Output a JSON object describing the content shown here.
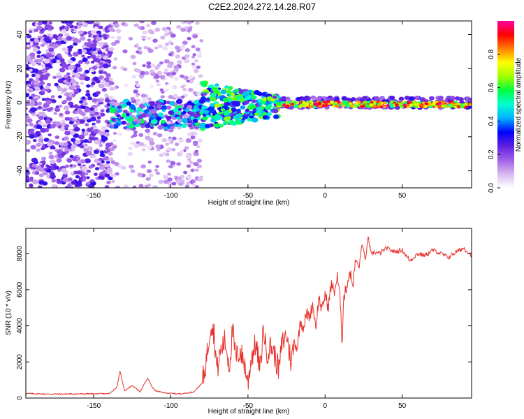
{
  "title": "C2E2.2024.272.14.28.R07",
  "chart_data": [
    {
      "type": "heatmap",
      "xlabel": "Height of straight line (km)",
      "ylabel": "Frequency (Hz)",
      "xlim": [
        -194,
        95
      ],
      "ylim": [
        -50,
        48
      ],
      "xticks": [
        -150,
        -100,
        -50,
        0,
        50
      ],
      "yticks": [
        -40,
        -20,
        0,
        20,
        40
      ],
      "xtick_labels": [
        "-150",
        "-100",
        "-50",
        "0",
        "50"
      ],
      "ytick_labels": [
        "-40",
        "-20",
        "0",
        "20",
        "40"
      ],
      "colorbar": {
        "label": "Normalized spectral amplitude",
        "range": [
          0,
          1
        ],
        "ticks": [
          0.0,
          0.2,
          0.4,
          0.6,
          0.8
        ],
        "tick_labels": [
          "0.0",
          "0.2",
          "0.4",
          "0.6",
          "0.8"
        ],
        "colormap": [
          "#ffffff",
          "#d8b8f0",
          "#a060e8",
          "#6020e0",
          "#0000ff",
          "#00b0ff",
          "#00ffd0",
          "#00ff40",
          "#a0ff00",
          "#ffff00",
          "#ff8000",
          "#ff0000",
          "#ff00a0"
        ]
      },
      "regions": [
        {
          "x_range": [
            -194,
            -139
          ],
          "pattern": "broadband scattered noise",
          "amplitude": [
            0.05,
            0.3
          ]
        },
        {
          "x_range": [
            -139,
            -80
          ],
          "pattern": "noise with concentrated band near 0 Hz",
          "amplitude": [
            0.1,
            0.6
          ]
        },
        {
          "x_range": [
            -80,
            -30
          ],
          "pattern": "narrowing band around 0 Hz",
          "amplitude": [
            0.2,
            0.7
          ]
        },
        {
          "x_range": [
            -30,
            95
          ],
          "pattern": "narrow band at 0 Hz",
          "amplitude": [
            0.5,
            1.0
          ]
        }
      ]
    },
    {
      "type": "line",
      "xlabel": "Height of straight line (km)",
      "ylabel": "SNR (10 * v/v)",
      "xlim": [
        -194,
        95
      ],
      "ylim": [
        0,
        9400
      ],
      "xticks": [
        -150,
        -100,
        -50,
        0,
        50
      ],
      "yticks": [
        0,
        2000,
        4000,
        6000,
        8000
      ],
      "xtick_labels": [
        "-150",
        "-100",
        "-50",
        "0",
        "50"
      ],
      "ytick_labels": [
        "0",
        "2000",
        "4000",
        "6000",
        "8000"
      ],
      "color": "#e8302a",
      "series": [
        {
          "name": "SNR",
          "x": [
            -194,
            -180,
            -160,
            -140,
            -135,
            -133,
            -130,
            -125,
            -120,
            -115,
            -112,
            -110,
            -105,
            -100,
            -95,
            -90,
            -85,
            -80,
            -78,
            -76,
            -74,
            -72,
            -70,
            -68,
            -65,
            -62,
            -60,
            -58,
            -55,
            -52,
            -50,
            -48,
            -45,
            -42,
            -40,
            -38,
            -35,
            -32,
            -30,
            -28,
            -25,
            -22,
            -20,
            -18,
            -16,
            -14,
            -12,
            -10,
            -8,
            -6,
            -4,
            -2,
            0,
            2,
            4,
            6,
            8,
            10,
            11,
            12,
            14,
            16,
            18,
            20,
            22,
            24,
            26,
            28,
            30,
            32,
            35,
            40,
            45,
            50,
            55,
            60,
            65,
            70,
            75,
            80,
            85,
            90,
            95
          ],
          "y": [
            250,
            220,
            230,
            240,
            600,
            1500,
            400,
            700,
            350,
            1100,
            600,
            400,
            300,
            260,
            230,
            270,
            350,
            800,
            1500,
            2800,
            4200,
            3600,
            1500,
            2500,
            3200,
            1800,
            3800,
            2200,
            2600,
            1800,
            800,
            2200,
            3000,
            1500,
            4000,
            2500,
            2900,
            2200,
            1500,
            3000,
            3500,
            2000,
            3100,
            2800,
            4300,
            3900,
            4700,
            4500,
            5200,
            3900,
            5600,
            4800,
            5800,
            5000,
            6300,
            5900,
            6700,
            5300,
            3000,
            5500,
            6200,
            7000,
            6300,
            7700,
            7200,
            8600,
            7600,
            8900,
            7900,
            8100,
            8000,
            8300,
            8100,
            8200,
            7600,
            8000,
            7900,
            8200,
            8000,
            7800,
            8100,
            8300,
            7900
          ]
        }
      ]
    }
  ]
}
